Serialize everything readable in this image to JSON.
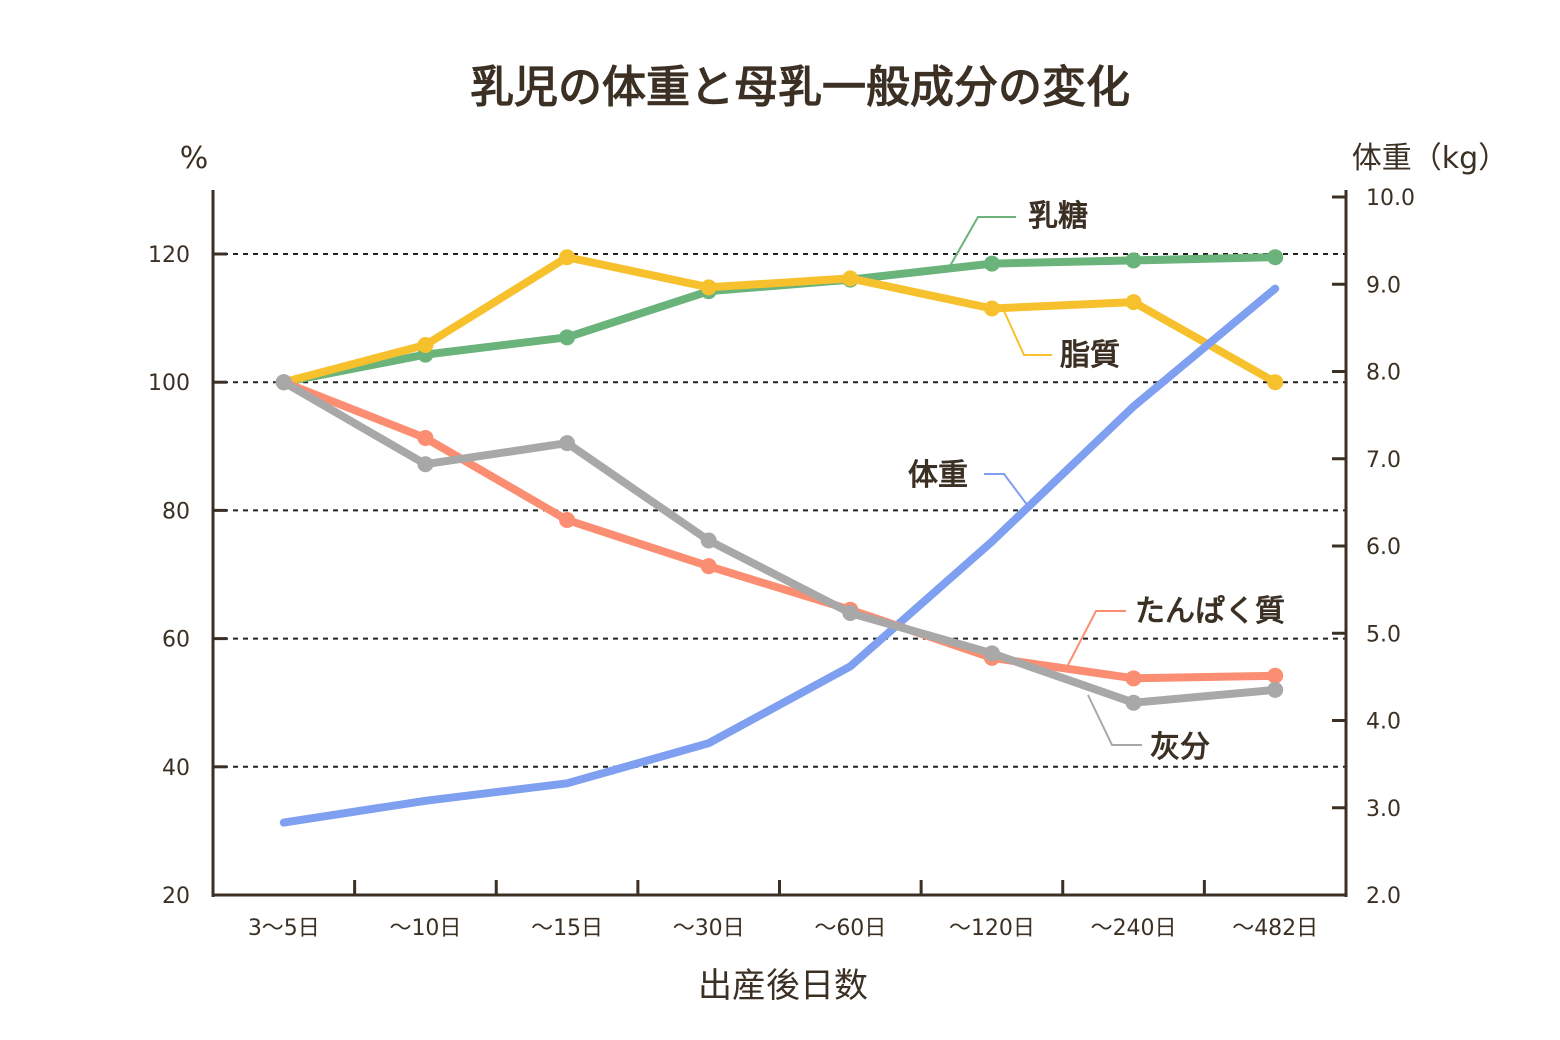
{
  "chart_data": {
    "type": "line",
    "title": "乳児の体重と母乳一般成分の変化",
    "xlabel": "出産後日数",
    "ylabel_left": "%",
    "ylabel_right": "体重（kg）",
    "categories": [
      "3〜5日",
      "〜10日",
      "〜15日",
      "〜30日",
      "〜60日",
      "〜120日",
      "〜240日",
      "〜482日"
    ],
    "y_left": {
      "lim": [
        20,
        130
      ],
      "ticks": [
        "20",
        "40",
        "60",
        "80",
        "100",
        "120"
      ]
    },
    "y_right": {
      "lim": [
        2.0,
        10.0
      ],
      "ticks": [
        "2.0",
        "3.0",
        "4.0",
        "5.0",
        "6.0",
        "7.0",
        "8.0",
        "9.0",
        "10.0"
      ]
    },
    "gridlines_left": [
      40,
      60,
      80,
      100,
      120
    ],
    "series": [
      {
        "name": "乳糖",
        "axis": "left",
        "color": "#6ab37a",
        "markers": true,
        "values": [
          100,
          104.3,
          107,
          114.2,
          116,
          118.5,
          119,
          119.5
        ]
      },
      {
        "name": "脂質",
        "axis": "left",
        "color": "#f7c12e",
        "markers": true,
        "values": [
          100,
          105.8,
          119.5,
          114.8,
          116.2,
          111.5,
          112.5,
          100
        ]
      },
      {
        "name": "体重",
        "axis": "right",
        "color": "#7f9ff0",
        "markers": false,
        "values": [
          2.83,
          3.08,
          3.28,
          3.74,
          4.62,
          6.05,
          7.6,
          8.95
        ]
      },
      {
        "name": "たんぱく質",
        "axis": "left",
        "color": "#fb8e72",
        "markers": true,
        "values": [
          100,
          91.3,
          78.5,
          71.3,
          64.5,
          57,
          53.8,
          54.2
        ]
      },
      {
        "name": "灰分",
        "axis": "left",
        "color": "#a8a8a8",
        "markers": true,
        "values": [
          100,
          87.2,
          90.5,
          75.3,
          64,
          57.7,
          50,
          52
        ]
      }
    ]
  }
}
